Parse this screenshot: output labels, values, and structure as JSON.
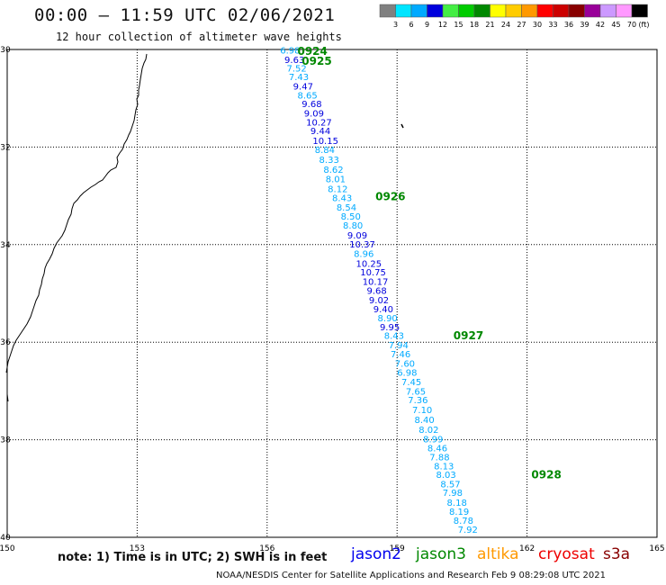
{
  "header": {
    "title": "00:00 — 11:59 UTC 02/06/2021",
    "subtitle": "12 hour collection of altimeter wave heights"
  },
  "color_scale": {
    "labels": [
      "3",
      "6",
      "9",
      "12",
      "15",
      "18",
      "21",
      "24",
      "27",
      "30",
      "33",
      "36",
      "39",
      "42",
      "45",
      "70"
    ],
    "colors": [
      "#808080",
      "#00e5ff",
      "#00aaff",
      "#0000dd",
      "#44ee44",
      "#00cc00",
      "#008800",
      "#ffff00",
      "#ffcc00",
      "#ff9900",
      "#ff0000",
      "#cc0000",
      "#880000",
      "#990099",
      "#cc99ff",
      "#ff99ff",
      "#000000"
    ],
    "unit": "(ft)"
  },
  "axes": {
    "lat_ticks": [
      "30",
      "32",
      "34",
      "36",
      "38",
      "40"
    ],
    "lat_values": [
      30,
      32,
      34,
      36,
      38,
      40
    ],
    "lon_ticks": [
      "150",
      "153",
      "156",
      "159",
      "162",
      "165"
    ],
    "lon_values": [
      150,
      153,
      156,
      159,
      162,
      165
    ],
    "lon_range": [
      150,
      165
    ],
    "lat_range": [
      30,
      40
    ]
  },
  "track": {
    "satellite": "jason3",
    "time_labels": [
      {
        "label": "0924",
        "lat": 30.02,
        "lon": 156.7
      },
      {
        "label": "0925",
        "lat": 30.22,
        "lon": 156.8
      },
      {
        "label": "0926",
        "lat": 33.0,
        "lon": 158.5
      },
      {
        "label": "0927",
        "lat": 35.85,
        "lon": 160.3
      },
      {
        "label": "0928",
        "lat": 38.7,
        "lon": 162.1
      }
    ],
    "points": [
      {
        "h": "6.98",
        "lat": 30.03,
        "lon": 156.3
      },
      {
        "h": "9.63",
        "lat": 30.22,
        "lon": 156.4
      },
      {
        "h": "7.52",
        "lat": 30.4,
        "lon": 156.45
      },
      {
        "h": "7.43",
        "lat": 30.57,
        "lon": 156.5
      },
      {
        "h": "9.47",
        "lat": 30.77,
        "lon": 156.6
      },
      {
        "h": "8.65",
        "lat": 30.95,
        "lon": 156.7
      },
      {
        "h": "9.68",
        "lat": 31.13,
        "lon": 156.8
      },
      {
        "h": "9.09",
        "lat": 31.32,
        "lon": 156.85
      },
      {
        "h": "10.27",
        "lat": 31.5,
        "lon": 156.9
      },
      {
        "h": "9.44",
        "lat": 31.68,
        "lon": 157.0
      },
      {
        "h": "10.15",
        "lat": 31.88,
        "lon": 157.05
      },
      {
        "h": "8.84",
        "lat": 32.07,
        "lon": 157.1
      },
      {
        "h": "8.33",
        "lat": 32.27,
        "lon": 157.2
      },
      {
        "h": "8.62",
        "lat": 32.47,
        "lon": 157.3
      },
      {
        "h": "8.01",
        "lat": 32.67,
        "lon": 157.35
      },
      {
        "h": "8.12",
        "lat": 32.87,
        "lon": 157.4
      },
      {
        "h": "8.43",
        "lat": 33.05,
        "lon": 157.5
      },
      {
        "h": "8.54",
        "lat": 33.25,
        "lon": 157.6
      },
      {
        "h": "8.50",
        "lat": 33.43,
        "lon": 157.7
      },
      {
        "h": "8.80",
        "lat": 33.62,
        "lon": 157.75
      },
      {
        "h": "9.09",
        "lat": 33.82,
        "lon": 157.85
      },
      {
        "h": "10.37",
        "lat": 34.0,
        "lon": 157.9
      },
      {
        "h": "8.96",
        "lat": 34.2,
        "lon": 158.0
      },
      {
        "h": "10.25",
        "lat": 34.4,
        "lon": 158.05
      },
      {
        "h": "10.75",
        "lat": 34.58,
        "lon": 158.15
      },
      {
        "h": "10.17",
        "lat": 34.77,
        "lon": 158.2
      },
      {
        "h": "9.68",
        "lat": 34.95,
        "lon": 158.3
      },
      {
        "h": "9.02",
        "lat": 35.15,
        "lon": 158.35
      },
      {
        "h": "9.40",
        "lat": 35.33,
        "lon": 158.45
      },
      {
        "h": "8.90",
        "lat": 35.52,
        "lon": 158.55
      },
      {
        "h": "9.95",
        "lat": 35.7,
        "lon": 158.6
      },
      {
        "h": "8.43",
        "lat": 35.88,
        "lon": 158.7
      },
      {
        "h": "7.94",
        "lat": 36.07,
        "lon": 158.8
      },
      {
        "h": "7.46",
        "lat": 36.25,
        "lon": 158.85
      },
      {
        "h": "7.60",
        "lat": 36.45,
        "lon": 158.95
      },
      {
        "h": "6.98",
        "lat": 36.63,
        "lon": 159.0
      },
      {
        "h": "7.45",
        "lat": 36.83,
        "lon": 159.1
      },
      {
        "h": "7.65",
        "lat": 37.02,
        "lon": 159.2
      },
      {
        "h": "7.36",
        "lat": 37.2,
        "lon": 159.25
      },
      {
        "h": "7.10",
        "lat": 37.4,
        "lon": 159.35
      },
      {
        "h": "8.40",
        "lat": 37.6,
        "lon": 159.4
      },
      {
        "h": "8.02",
        "lat": 37.8,
        "lon": 159.5
      },
      {
        "h": "8.99",
        "lat": 38.0,
        "lon": 159.6
      },
      {
        "h": "8.46",
        "lat": 38.18,
        "lon": 159.7
      },
      {
        "h": "7.88",
        "lat": 38.37,
        "lon": 159.75
      },
      {
        "h": "8.13",
        "lat": 38.55,
        "lon": 159.85
      },
      {
        "h": "8.03",
        "lat": 38.73,
        "lon": 159.9
      },
      {
        "h": "8.57",
        "lat": 38.92,
        "lon": 160.0
      },
      {
        "h": "7.98",
        "lat": 39.1,
        "lon": 160.05
      },
      {
        "h": "8.18",
        "lat": 39.3,
        "lon": 160.15
      },
      {
        "h": "8.19",
        "lat": 39.48,
        "lon": 160.2
      },
      {
        "h": "8.78",
        "lat": 39.67,
        "lon": 160.3
      },
      {
        "h": "7.92",
        "lat": 39.85,
        "lon": 160.4
      }
    ]
  },
  "footer": {
    "note": "note: 1) Time is in UTC; 2) SWH is in feet",
    "credit": "NOAA/NESDIS Center for Satellite Applications and Research   Feb  9 08:29:08 UTC 2021",
    "satellites": [
      {
        "name": "jason2",
        "color": "#0000ee"
      },
      {
        "name": "jason3",
        "color": "#008800"
      },
      {
        "name": "altika",
        "color": "#ff9900"
      },
      {
        "name": "cryosat",
        "color": "#ee0000"
      },
      {
        "name": "s3a",
        "color": "#880000"
      }
    ]
  }
}
